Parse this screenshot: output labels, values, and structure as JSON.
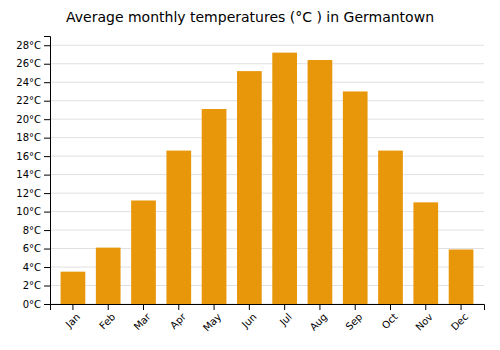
{
  "chart_data": {
    "type": "bar",
    "title": "Average monthly temperatures (°C ) in Germantown",
    "categories": [
      "Jan",
      "Feb",
      "Mar",
      "Apr",
      "May",
      "Jun",
      "Jul",
      "Aug",
      "Sep",
      "Oct",
      "Nov",
      "Dec"
    ],
    "values": [
      3.5,
      6.1,
      11.2,
      16.6,
      21.1,
      25.2,
      27.2,
      26.4,
      23.0,
      16.6,
      11.0,
      5.9
    ],
    "color": "#E8960A",
    "ylim": [
      0,
      29
    ],
    "yticks": [
      {
        "value": 0,
        "label": "0°C"
      },
      {
        "value": 2,
        "label": "2°C"
      },
      {
        "value": 4,
        "label": "4°C"
      },
      {
        "value": 6,
        "label": "6°C"
      },
      {
        "value": 8,
        "label": "8°C"
      },
      {
        "value": 10,
        "label": "10°C"
      },
      {
        "value": 12,
        "label": "12°C"
      },
      {
        "value": 14,
        "label": "14°C"
      },
      {
        "value": 16,
        "label": "16°C"
      },
      {
        "value": 18,
        "label": "18°C"
      },
      {
        "value": 20,
        "label": "20°C"
      },
      {
        "value": 22,
        "label": "22°C"
      },
      {
        "value": 24,
        "label": "24°C"
      },
      {
        "value": 26,
        "label": "26°C"
      },
      {
        "value": 28,
        "label": "28°C"
      }
    ],
    "grid": true
  }
}
